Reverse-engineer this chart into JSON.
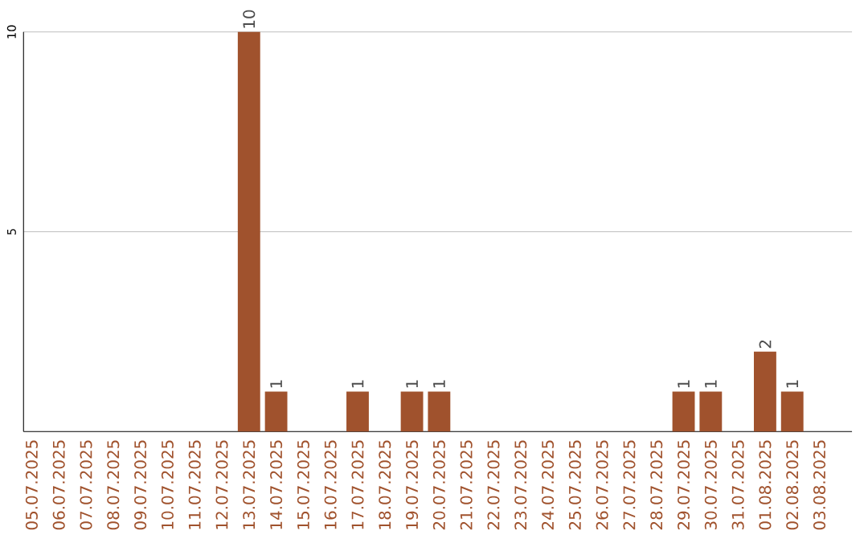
{
  "chart_data": {
    "type": "bar",
    "categories": [
      "05.07.2025",
      "06.07.2025",
      "07.07.2025",
      "08.07.2025",
      "09.07.2025",
      "10.07.2025",
      "11.07.2025",
      "12.07.2025",
      "13.07.2025",
      "14.07.2025",
      "15.07.2025",
      "16.07.2025",
      "17.07.2025",
      "18.07.2025",
      "19.07.2025",
      "20.07.2025",
      "21.07.2025",
      "22.07.2025",
      "23.07.2025",
      "24.07.2025",
      "25.07.2025",
      "26.07.2025",
      "27.07.2025",
      "28.07.2025",
      "29.07.2025",
      "30.07.2025",
      "31.07.2025",
      "01.08.2025",
      "02.08.2025",
      "03.08.2025"
    ],
    "values": [
      0,
      0,
      0,
      0,
      0,
      0,
      0,
      0,
      10,
      1,
      0,
      0,
      1,
      0,
      1,
      1,
      0,
      0,
      0,
      0,
      0,
      0,
      0,
      0,
      1,
      1,
      0,
      2,
      1,
      0
    ],
    "value_labels": [
      null,
      null,
      null,
      null,
      null,
      null,
      null,
      null,
      "10",
      "1",
      null,
      null,
      "1",
      null,
      "1",
      "1",
      null,
      null,
      null,
      null,
      null,
      null,
      null,
      null,
      "1",
      "1",
      null,
      "2",
      "1",
      null
    ],
    "color": "#a0522d",
    "ylim": [
      0,
      10
    ],
    "yticks": [
      5,
      10
    ],
    "grid": "y"
  }
}
